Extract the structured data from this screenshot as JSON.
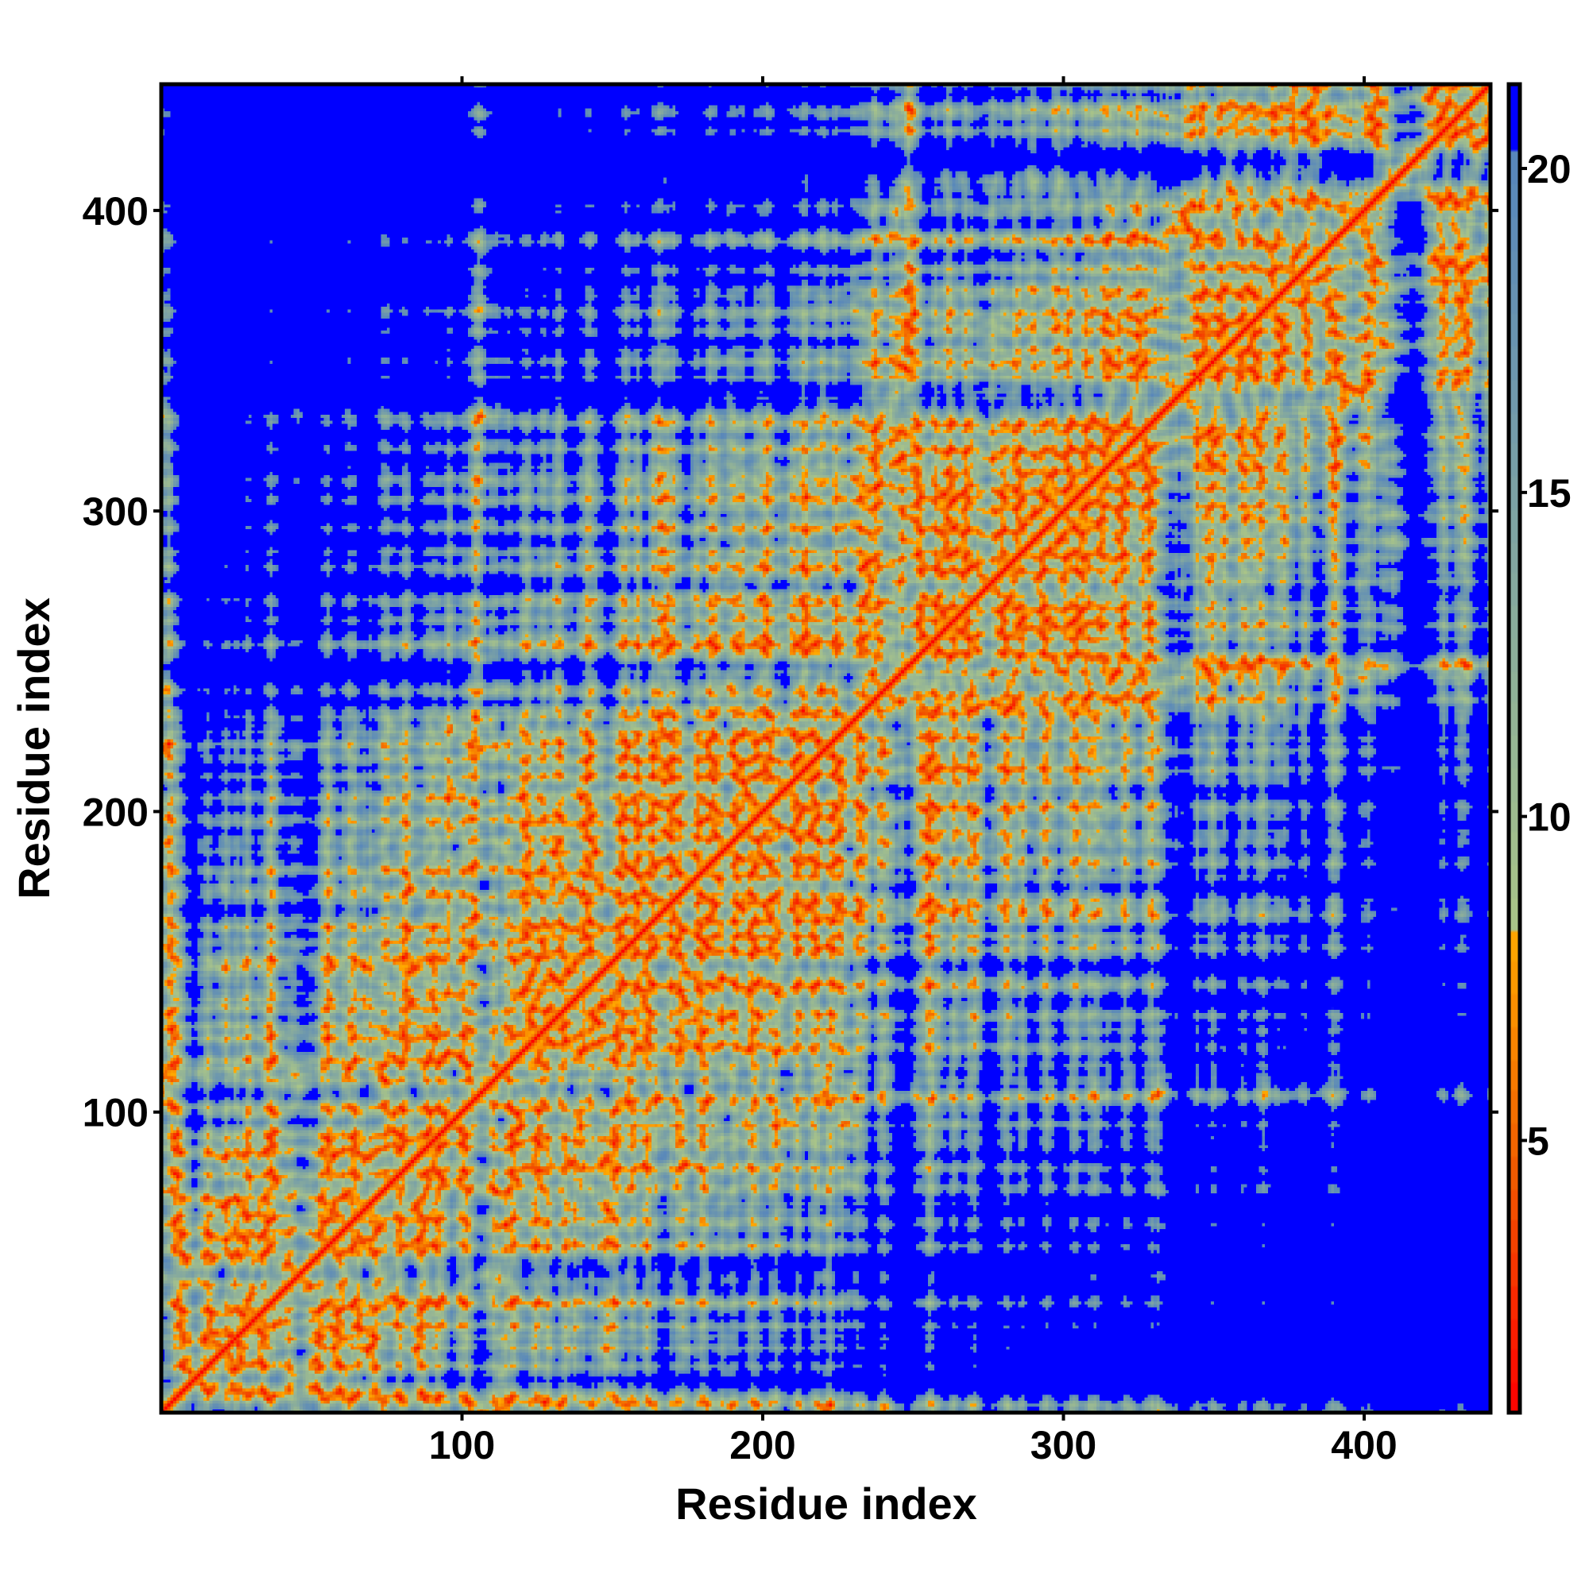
{
  "chart_data": {
    "type": "heatmap",
    "title": "",
    "xlabel": "Residue index",
    "ylabel": "Residue index",
    "n_residues": 442,
    "xlim": [
      0,
      442
    ],
    "ylim": [
      0,
      442
    ],
    "xticks": [
      "100",
      "200",
      "300",
      "400"
    ],
    "yticks": [
      "100",
      "200",
      "300",
      "400"
    ],
    "xtick_values": [
      100,
      200,
      300,
      400
    ],
    "ytick_values": [
      100,
      200,
      300,
      400
    ],
    "grid": false,
    "colorbar": {
      "range": [
        0.8,
        21.3
      ],
      "ticks": [
        "5",
        "10",
        "15",
        "20"
      ],
      "tick_values": [
        5,
        10,
        15,
        20
      ],
      "stops": [
        {
          "value": 0.8,
          "color": "#ff0000"
        },
        {
          "value": 4.5,
          "color": "#f05a00"
        },
        {
          "value": 8.3,
          "color": "#ffaa00"
        },
        {
          "value": 8.31,
          "color": "#a9c488"
        },
        {
          "value": 20,
          "color": "#5887bb"
        },
        {
          "value": 20.01,
          "color": "#0000ff"
        }
      ]
    },
    "description_values": "Symmetric pairwise residue distance map; diagonal red (<5), contacts orange/green, most off-diagonal 15-20 (steel blue), termini regions >20 (blue)"
  }
}
